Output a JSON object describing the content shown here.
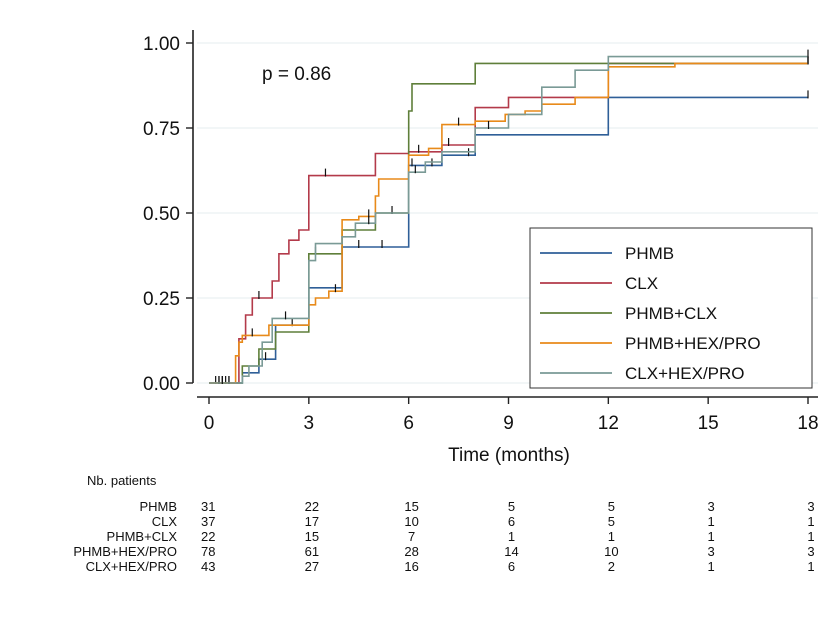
{
  "chart_data": {
    "type": "line",
    "subtype": "kaplan-meier step curve",
    "xlabel": "Time (months)",
    "ylabel": "",
    "xlim": [
      0,
      18
    ],
    "ylim": [
      0,
      1
    ],
    "x_ticks": [
      "0",
      "3",
      "6",
      "9",
      "12",
      "15",
      "18"
    ],
    "y_ticks": [
      "0.00",
      "0.25",
      "0.50",
      "0.75",
      "1.00"
    ],
    "grid": "horizontal",
    "annotation": "p = 0.86",
    "legend": {
      "position": "bottom-right",
      "entries": [
        "PHMB",
        "CLX",
        "PHMB+CLX",
        "PHMB+HEX/PRO",
        "CLX+HEX/PRO"
      ]
    },
    "series": [
      {
        "name": "PHMB",
        "color": "#2f5f98",
        "points": [
          [
            0,
            0
          ],
          [
            1.0,
            0
          ],
          [
            1.0,
            0.03
          ],
          [
            1.5,
            0.03
          ],
          [
            1.5,
            0.07
          ],
          [
            2.0,
            0.07
          ],
          [
            2.0,
            0.17
          ],
          [
            3.0,
            0.17
          ],
          [
            3.0,
            0.28
          ],
          [
            4.0,
            0.28
          ],
          [
            4.0,
            0.4
          ],
          [
            6.0,
            0.4
          ],
          [
            6.0,
            0.64
          ],
          [
            7.0,
            0.64
          ],
          [
            7.0,
            0.67
          ],
          [
            8.0,
            0.67
          ],
          [
            8.0,
            0.73
          ],
          [
            12.0,
            0.73
          ],
          [
            12.0,
            0.84
          ],
          [
            18.0,
            0.84
          ]
        ],
        "censored": [
          [
            0.3,
            0
          ],
          [
            0.6,
            0
          ],
          [
            1.7,
            0.07
          ],
          [
            2.5,
            0.17
          ],
          [
            4.5,
            0.4
          ],
          [
            5.2,
            0.4
          ],
          [
            6.1,
            0.64
          ],
          [
            6.7,
            0.64
          ],
          [
            7.8,
            0.67
          ],
          [
            18.0,
            0.84
          ]
        ]
      },
      {
        "name": "CLX",
        "color": "#b33a4a",
        "points": [
          [
            0,
            0
          ],
          [
            0.9,
            0
          ],
          [
            0.9,
            0.13
          ],
          [
            1.1,
            0.13
          ],
          [
            1.1,
            0.2
          ],
          [
            1.3,
            0.2
          ],
          [
            1.3,
            0.25
          ],
          [
            1.9,
            0.25
          ],
          [
            1.9,
            0.3
          ],
          [
            2.1,
            0.3
          ],
          [
            2.1,
            0.38
          ],
          [
            2.4,
            0.38
          ],
          [
            2.4,
            0.42
          ],
          [
            2.7,
            0.42
          ],
          [
            2.7,
            0.45
          ],
          [
            3.0,
            0.45
          ],
          [
            3.0,
            0.61
          ],
          [
            5.0,
            0.61
          ],
          [
            5.0,
            0.675
          ],
          [
            6.0,
            0.675
          ],
          [
            6.0,
            0.68
          ],
          [
            7.0,
            0.68
          ],
          [
            7.0,
            0.7
          ],
          [
            8.0,
            0.7
          ],
          [
            8.0,
            0.81
          ],
          [
            9.0,
            0.81
          ],
          [
            9.0,
            0.84
          ],
          [
            10.0,
            0.84
          ],
          [
            10.0,
            0.84
          ],
          [
            12.0,
            0.84
          ],
          [
            12.0,
            0.94
          ],
          [
            18.0,
            0.94
          ]
        ],
        "censored": [
          [
            0.2,
            0
          ],
          [
            0.5,
            0
          ],
          [
            1.5,
            0.25
          ],
          [
            3.5,
            0.61
          ],
          [
            6.3,
            0.68
          ],
          [
            7.2,
            0.7
          ],
          [
            18.0,
            0.94
          ]
        ]
      },
      {
        "name": "PHMB+CLX",
        "color": "#5f7f3a",
        "points": [
          [
            0,
            0
          ],
          [
            1.0,
            0
          ],
          [
            1.0,
            0.05
          ],
          [
            1.5,
            0.05
          ],
          [
            1.5,
            0.1
          ],
          [
            2.0,
            0.1
          ],
          [
            2.0,
            0.15
          ],
          [
            3.0,
            0.15
          ],
          [
            3.0,
            0.38
          ],
          [
            4.0,
            0.38
          ],
          [
            4.0,
            0.45
          ],
          [
            5.0,
            0.45
          ],
          [
            5.0,
            0.5
          ],
          [
            6.0,
            0.5
          ],
          [
            6.0,
            0.8
          ],
          [
            6.1,
            0.8
          ],
          [
            6.1,
            0.88
          ],
          [
            7.0,
            0.88
          ],
          [
            7.0,
            0.88
          ],
          [
            8.0,
            0.88
          ],
          [
            8.0,
            0.94
          ],
          [
            18.0,
            0.94
          ]
        ],
        "censored": [
          [
            0.4,
            0
          ],
          [
            3.2,
            0.38
          ],
          [
            5.5,
            0.5
          ],
          [
            18.0,
            0.94
          ]
        ]
      },
      {
        "name": "PHMB+HEX/PRO",
        "color": "#e88a1a",
        "points": [
          [
            0,
            0
          ],
          [
            0.8,
            0
          ],
          [
            0.8,
            0.08
          ],
          [
            0.9,
            0.08
          ],
          [
            0.9,
            0.12
          ],
          [
            1.0,
            0.12
          ],
          [
            1.0,
            0.14
          ],
          [
            1.8,
            0.14
          ],
          [
            1.8,
            0.17
          ],
          [
            3.0,
            0.17
          ],
          [
            3.0,
            0.23
          ],
          [
            3.2,
            0.23
          ],
          [
            3.2,
            0.25
          ],
          [
            3.6,
            0.25
          ],
          [
            3.6,
            0.27
          ],
          [
            4.0,
            0.27
          ],
          [
            4.0,
            0.48
          ],
          [
            4.5,
            0.48
          ],
          [
            4.5,
            0.49
          ],
          [
            5.0,
            0.49
          ],
          [
            5.0,
            0.55
          ],
          [
            5.1,
            0.55
          ],
          [
            5.1,
            0.6
          ],
          [
            6.0,
            0.6
          ],
          [
            6.0,
            0.67
          ],
          [
            6.6,
            0.67
          ],
          [
            6.6,
            0.69
          ],
          [
            7.0,
            0.69
          ],
          [
            7.0,
            0.76
          ],
          [
            8.0,
            0.76
          ],
          [
            8.0,
            0.77
          ],
          [
            8.9,
            0.77
          ],
          [
            8.9,
            0.79
          ],
          [
            9.5,
            0.79
          ],
          [
            9.5,
            0.8
          ],
          [
            10.0,
            0.8
          ],
          [
            10.0,
            0.82
          ],
          [
            11.0,
            0.82
          ],
          [
            11.0,
            0.84
          ],
          [
            12.0,
            0.84
          ],
          [
            12.0,
            0.93
          ],
          [
            14.0,
            0.93
          ],
          [
            14.0,
            0.94
          ],
          [
            18.0,
            0.94
          ]
        ],
        "censored": [
          [
            0.3,
            0
          ],
          [
            0.6,
            0
          ],
          [
            1.3,
            0.14
          ],
          [
            3.8,
            0.27
          ],
          [
            4.8,
            0.49
          ],
          [
            7.5,
            0.76
          ],
          [
            18.0,
            0.94
          ]
        ]
      },
      {
        "name": "CLX+HEX/PRO",
        "color": "#7a9a96",
        "points": [
          [
            0,
            0
          ],
          [
            1.0,
            0
          ],
          [
            1.0,
            0.02
          ],
          [
            1.2,
            0.02
          ],
          [
            1.2,
            0.05
          ],
          [
            1.6,
            0.05
          ],
          [
            1.6,
            0.12
          ],
          [
            1.9,
            0.12
          ],
          [
            1.9,
            0.19
          ],
          [
            3.0,
            0.19
          ],
          [
            3.0,
            0.36
          ],
          [
            3.2,
            0.36
          ],
          [
            3.2,
            0.41
          ],
          [
            4.0,
            0.41
          ],
          [
            4.0,
            0.43
          ],
          [
            4.4,
            0.43
          ],
          [
            4.4,
            0.47
          ],
          [
            5.0,
            0.47
          ],
          [
            5.0,
            0.5
          ],
          [
            6.0,
            0.5
          ],
          [
            6.0,
            0.62
          ],
          [
            6.5,
            0.62
          ],
          [
            6.5,
            0.65
          ],
          [
            7.0,
            0.65
          ],
          [
            7.0,
            0.68
          ],
          [
            8.0,
            0.68
          ],
          [
            8.0,
            0.75
          ],
          [
            9.0,
            0.75
          ],
          [
            9.0,
            0.79
          ],
          [
            10.0,
            0.79
          ],
          [
            10.0,
            0.87
          ],
          [
            11.0,
            0.87
          ],
          [
            11.0,
            0.92
          ],
          [
            12.0,
            0.92
          ],
          [
            12.0,
            0.96
          ],
          [
            18.0,
            0.96
          ]
        ],
        "censored": [
          [
            0.4,
            0
          ],
          [
            2.3,
            0.19
          ],
          [
            4.8,
            0.47
          ],
          [
            6.2,
            0.62
          ],
          [
            8.4,
            0.75
          ],
          [
            18.0,
            0.96
          ]
        ]
      }
    ],
    "risk_table": {
      "title": "Nb. patients",
      "times": [
        0,
        3,
        6,
        9,
        12,
        15,
        18
      ],
      "rows": [
        {
          "name": "PHMB",
          "values": [
            "31",
            "22",
            "15",
            "5",
            "5",
            "3",
            "3"
          ]
        },
        {
          "name": "CLX",
          "values": [
            "37",
            "17",
            "10",
            "6",
            "5",
            "1",
            "1"
          ]
        },
        {
          "name": "PHMB+CLX",
          "values": [
            "22",
            "15",
            "7",
            "1",
            "1",
            "1",
            "1"
          ]
        },
        {
          "name": "PHMB+HEX/PRO",
          "values": [
            "78",
            "61",
            "28",
            "14",
            "10",
            "3",
            "3"
          ]
        },
        {
          "name": "CLX+HEX/PRO",
          "values": [
            "43",
            "27",
            "16",
            "6",
            "2",
            "1",
            "1"
          ]
        }
      ]
    }
  }
}
